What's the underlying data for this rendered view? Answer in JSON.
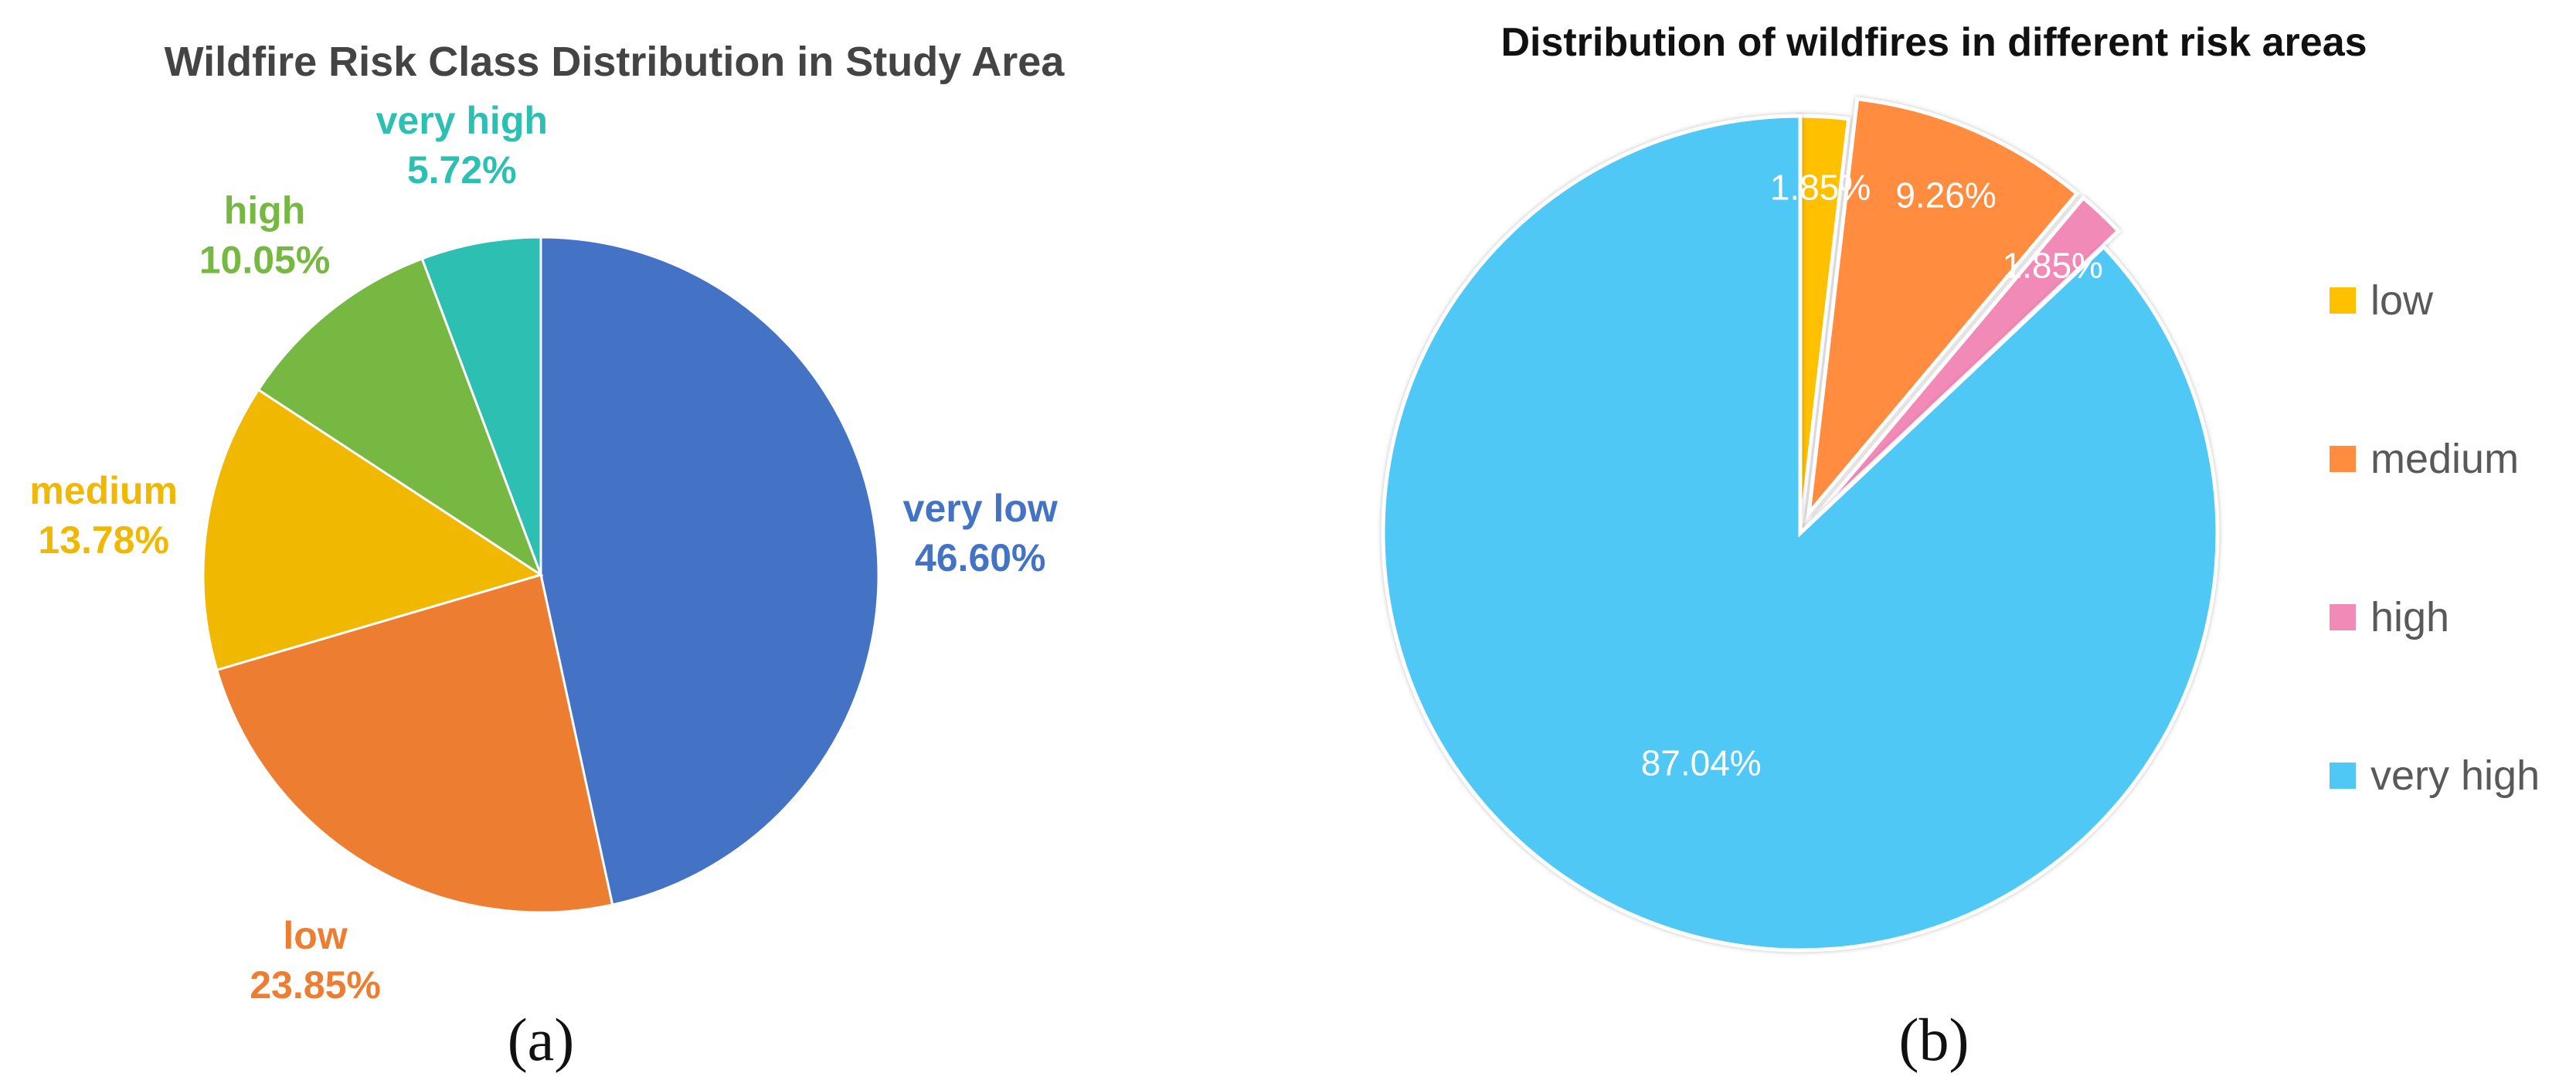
{
  "chart_data": [
    {
      "type": "pie",
      "title": "Wildfire Risk Class Distribution in Study Area",
      "caption": "(a)",
      "slices": [
        {
          "label": "very low",
          "value": 46.6,
          "value_text": "46.60%",
          "color": "#4472C4"
        },
        {
          "label": "low",
          "value": 23.85,
          "value_text": "23.85%",
          "color": "#ED7D31"
        },
        {
          "label": "medium",
          "value": 13.78,
          "value_text": "13.78%",
          "color": "#F0B800"
        },
        {
          "label": "high",
          "value": 10.05,
          "value_text": "10.05%",
          "color": "#77B843"
        },
        {
          "label": "very high",
          "value": 5.72,
          "value_text": "5.72%",
          "color": "#2DBFB2"
        }
      ],
      "legend": "none"
    },
    {
      "type": "pie",
      "title": "Distribution of wildfires in different risk areas",
      "caption": "(b)",
      "slices": [
        {
          "label": "low",
          "value": 1.85,
          "value_text": "1.85%",
          "color": "#FFC000",
          "exploded": false
        },
        {
          "label": "medium",
          "value": 9.26,
          "value_text": "9.26%",
          "color": "#FF8C3F",
          "exploded": true
        },
        {
          "label": "high",
          "value": 1.85,
          "value_text": "1.85%",
          "color": "#F28AB7",
          "exploded": true
        },
        {
          "label": "very high",
          "value": 87.04,
          "value_text": "87.04%",
          "color": "#4FC8F5",
          "exploded": false
        }
      ],
      "legend": "right"
    }
  ]
}
